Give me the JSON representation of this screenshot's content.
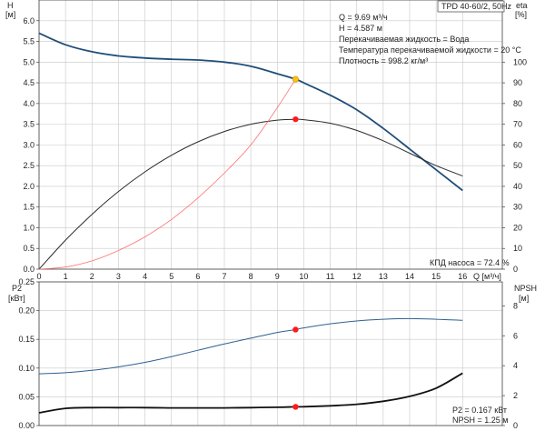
{
  "chart_data": [
    {
      "type": "line",
      "title": "TPD 40-60/2, 50Hz",
      "xlabel": "Q [м³/ч]",
      "x_ticks": [
        0,
        1,
        2,
        3,
        4,
        5,
        6,
        7,
        8,
        9,
        10,
        11,
        12,
        13,
        14,
        15,
        16
      ],
      "xlim": [
        0,
        17.5
      ],
      "left_axis": {
        "label_top": "H",
        "label_unit": "[м]",
        "ticks": [
          "0.0",
          "0.5",
          "1.0",
          "1.5",
          "2.0",
          "2.5",
          "3.0",
          "3.5",
          "4.0",
          "4.5",
          "5.0",
          "5.5",
          "6.0"
        ],
        "ylim": [
          0,
          6.5
        ]
      },
      "right_axis": {
        "label_top": "eta",
        "label_unit": "[%]",
        "ticks": [
          "0",
          "10",
          "20",
          "30",
          "40",
          "50",
          "60",
          "70",
          "80",
          "90",
          "100"
        ],
        "ylim": [
          0,
          130
        ]
      },
      "series": [
        {
          "axis": "left",
          "color": "#1f4e79",
          "x": [
            0,
            1,
            2,
            3,
            4,
            5,
            6,
            7,
            8,
            9,
            9.69,
            10,
            11,
            12,
            13,
            14,
            15,
            16
          ],
          "y": [
            5.7,
            5.42,
            5.25,
            5.15,
            5.1,
            5.07,
            5.05,
            5.0,
            4.9,
            4.72,
            4.587,
            4.5,
            4.2,
            3.85,
            3.4,
            2.9,
            2.4,
            1.9
          ]
        },
        {
          "axis": "right",
          "color": "#2b2b2b",
          "x": [
            0,
            1,
            2,
            3,
            4,
            5,
            6,
            7,
            8,
            9,
            9.69,
            10,
            11,
            12,
            13,
            14,
            15,
            16
          ],
          "y": [
            0,
            14,
            26.5,
            37.5,
            47,
            55,
            61.5,
            66.5,
            70,
            72,
            72.4,
            72.2,
            70.5,
            67,
            62,
            56,
            50,
            45
          ]
        },
        {
          "axis": "left",
          "color": "#ff7070",
          "x": [
            0,
            1,
            2,
            3,
            4,
            5,
            6,
            7,
            8,
            9,
            9.69
          ],
          "y": [
            0,
            0.05,
            0.2,
            0.45,
            0.78,
            1.2,
            1.72,
            2.32,
            3.0,
            3.9,
            4.587
          ]
        }
      ],
      "operating_point": {
        "q": 9.69,
        "h": 4.587,
        "eta": 72.4
      },
      "info_lines": [
        "Q = 9.69 м³/ч",
        "H = 4.587 м",
        "Перекачиваемая жидкость = Вода",
        "Температура перекачиваемой жидкости = 20 °C",
        "Плотность = 998.2 кг/м³"
      ],
      "efficiency_note": "КПД насоса = 72.4 %"
    },
    {
      "type": "line",
      "xlim": [
        0,
        17.5
      ],
      "left_axis": {
        "label_top": "P2",
        "label_unit": "[кВт]",
        "ticks": [
          "0.00",
          "0.05",
          "0.10",
          "0.15",
          "0.20",
          "0.25"
        ],
        "ylim": [
          0,
          0.25
        ]
      },
      "right_axis": {
        "label_top": "NPSH",
        "label_unit": "[м]",
        "ticks": [
          "0",
          "2",
          "4",
          "6",
          "8"
        ],
        "ylim": [
          0,
          9.6
        ]
      },
      "series": [
        {
          "axis": "left",
          "color": "#2f6090",
          "x": [
            0,
            1,
            2,
            3,
            4,
            5,
            6,
            7,
            8,
            9,
            9.69,
            10,
            11,
            12,
            13,
            14,
            15,
            16
          ],
          "y": [
            0.09,
            0.092,
            0.096,
            0.102,
            0.11,
            0.12,
            0.131,
            0.142,
            0.152,
            0.162,
            0.167,
            0.17,
            0.177,
            0.182,
            0.185,
            0.186,
            0.185,
            0.183
          ]
        },
        {
          "axis": "right",
          "color": "#111111",
          "x": [
            0,
            1,
            2,
            3,
            4,
            5,
            6,
            7,
            8,
            9,
            9.69,
            10,
            11,
            12,
            13,
            14,
            15,
            16
          ],
          "y": [
            0.85,
            1.15,
            1.2,
            1.2,
            1.2,
            1.18,
            1.18,
            1.18,
            1.2,
            1.22,
            1.25,
            1.26,
            1.32,
            1.42,
            1.62,
            1.95,
            2.5,
            3.5
          ]
        }
      ],
      "operating_point": {
        "q": 9.69,
        "p2": 0.167,
        "npsh": 1.25
      },
      "info_lines": [
        "P2 = 0.167 кВт",
        "NPSH = 1.25 м"
      ]
    }
  ]
}
